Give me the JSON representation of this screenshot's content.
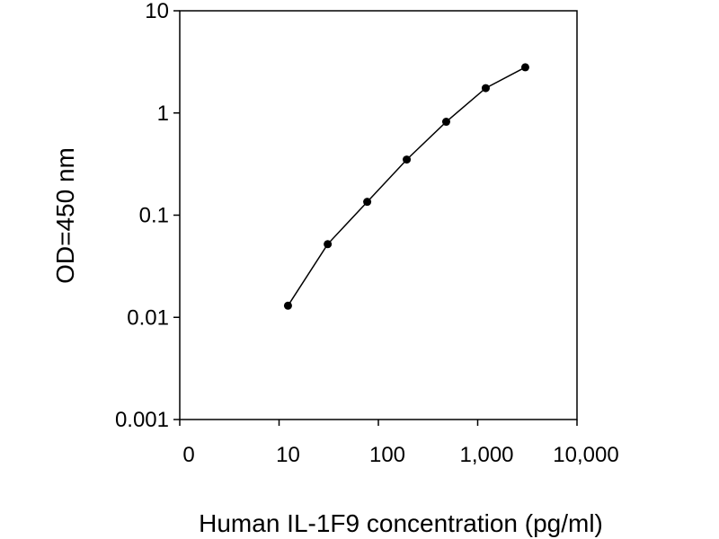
{
  "chart_data": {
    "type": "line",
    "title": "",
    "xlabel": "Human IL-1F9 concentration (pg/ml)",
    "ylabel": "OD=450 nm",
    "x_scale": "log",
    "y_scale": "log",
    "xlim": [
      1,
      10000
    ],
    "ylim": [
      0.001,
      10
    ],
    "x_ticks": [
      {
        "value": 1,
        "label": "0"
      },
      {
        "value": 10,
        "label": "10"
      },
      {
        "value": 100,
        "label": "100"
      },
      {
        "value": 1000,
        "label": "1,000"
      },
      {
        "value": 10000,
        "label": "10,000"
      }
    ],
    "y_ticks": [
      {
        "value": 0.001,
        "label": "0.001"
      },
      {
        "value": 0.01,
        "label": "0.01"
      },
      {
        "value": 0.1,
        "label": "0.1"
      },
      {
        "value": 1,
        "label": "1"
      },
      {
        "value": 10,
        "label": "10"
      }
    ],
    "grid": false,
    "legend": "none",
    "series": [
      {
        "x": [
          12.3,
          30.9,
          77.2,
          193,
          482,
          1205,
          3014
        ],
        "y": [
          0.013,
          0.052,
          0.135,
          0.35,
          0.82,
          1.75,
          2.8
        ],
        "color": "#000000",
        "marker": "circle"
      }
    ]
  }
}
